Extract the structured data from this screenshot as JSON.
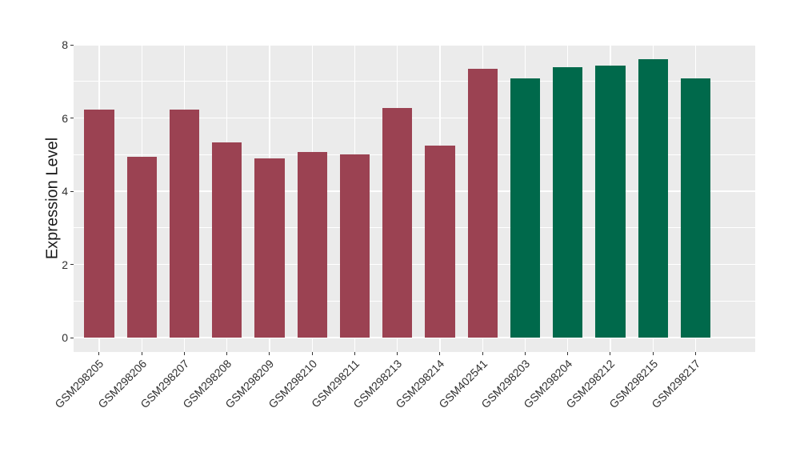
{
  "figure": {
    "background": "#ffffff",
    "panel_background": "#ebebeb",
    "grid_color": "#ffffff",
    "axis_text_color": "#303030",
    "axis_title_color": "#1a1a1a",
    "tick_mark_color": "#333333",
    "group_colors": {
      "red": "#9b4252",
      "green": "#00694b"
    }
  },
  "chart_data": {
    "type": "bar",
    "title": "",
    "xlabel": "",
    "ylabel": "Expression Level",
    "categories": [
      "GSM298205",
      "GSM298206",
      "GSM298207",
      "GSM298208",
      "GSM298209",
      "GSM298210",
      "GSM298211",
      "GSM298213",
      "GSM298214",
      "GSM402541",
      "GSM298203",
      "GSM298204",
      "GSM298212",
      "GSM298215",
      "GSM298217"
    ],
    "values": [
      6.24,
      4.94,
      6.24,
      5.33,
      4.9,
      5.07,
      5.01,
      6.27,
      5.25,
      7.34,
      7.08,
      7.38,
      7.44,
      7.61,
      7.08
    ],
    "bar_colors": [
      "#9b4252",
      "#9b4252",
      "#9b4252",
      "#9b4252",
      "#9b4252",
      "#9b4252",
      "#9b4252",
      "#9b4252",
      "#9b4252",
      "#9b4252",
      "#00694b",
      "#00694b",
      "#00694b",
      "#00694b",
      "#00694b"
    ],
    "yticks": [
      0,
      2,
      4,
      6,
      8
    ],
    "ytick_labels": [
      "0",
      "2",
      "4",
      "6",
      "8"
    ],
    "ylim": [
      -0.4,
      8.03
    ],
    "grid": "white major and minor horizontal lines, white vertical lines at category centers",
    "legend": false
  }
}
